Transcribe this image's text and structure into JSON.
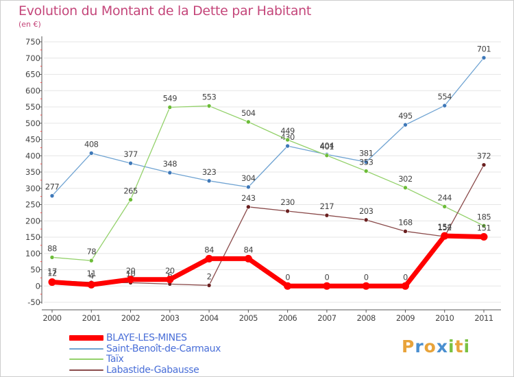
{
  "title": "Evolution du Montant de la Dette par Habitant",
  "subtitle": "(en €)",
  "brand": {
    "letters": [
      "P",
      "r",
      "o",
      "x",
      "i",
      "t",
      "i"
    ],
    "colors": [
      "#e8a33a",
      "#4a8fd0",
      "#e8a33a",
      "#4a8fd0",
      "#7ac142",
      "#e8a33a",
      "#7ac142"
    ]
  },
  "colors": {
    "axis": "#555555",
    "grid": "#e6e6e6",
    "text": "#444444"
  },
  "chart_data": {
    "type": "line",
    "title": "Evolution du Montant de la Dette par Habitant",
    "ylabel": "(en €)",
    "xlabel": "",
    "ylim": [
      -50,
      750
    ],
    "yticks": [
      "-50",
      "0",
      "50",
      "100",
      "150",
      "200",
      "250",
      "300",
      "350",
      "400",
      "450",
      "500",
      "550",
      "600",
      "650",
      "700",
      "750"
    ],
    "categories": [
      "2000",
      "2001",
      "2002",
      "2003",
      "2004",
      "2005",
      "2006",
      "2007",
      "2008",
      "2009",
      "2010",
      "2011"
    ],
    "grid": "horizontal",
    "legend_position": "bottom-left",
    "series": [
      {
        "name": "Saint-Benoît-de-Carmaux",
        "color": "#6fa3d2",
        "dot": "#3e78b8",
        "width": 1.3,
        "values": [
          277,
          408,
          377,
          348,
          323,
          304,
          430,
          404,
          381,
          495,
          554,
          701
        ],
        "labels": [
          "277",
          "408",
          "377",
          "348",
          "323",
          "304",
          "430",
          "404",
          "381",
          "495",
          "554",
          "701"
        ]
      },
      {
        "name": "Taïx",
        "color": "#93d16a",
        "dot": "#6cbc38",
        "width": 1.3,
        "values": [
          88,
          78,
          265,
          549,
          553,
          504,
          449,
          401,
          353,
          302,
          244,
          185
        ],
        "labels": [
          "88",
          "78",
          "265",
          "549",
          "553",
          "504",
          "449",
          "401",
          "353",
          "302",
          "244",
          "185"
        ]
      },
      {
        "name": "Labastide-Gabausse",
        "color": "#8a4a4a",
        "dot": "#6a2020",
        "width": 1.3,
        "values": [
          17,
          11,
          10,
          6,
          2,
          243,
          230,
          217,
          203,
          168,
          152,
          372
        ],
        "labels": [
          "17",
          "11",
          "10",
          "6",
          "2",
          "243",
          "230",
          "217",
          "203",
          "168",
          "152",
          "372"
        ]
      },
      {
        "name": "BLAYE-LES-MINES",
        "color": "#ff0000",
        "dot": "#ff0000",
        "width": 7,
        "values": [
          12,
          4,
          20,
          20,
          84,
          84,
          0,
          0,
          0,
          0,
          154,
          151
        ],
        "labels": [
          "12",
          "4",
          "20",
          "20",
          "84",
          "84",
          "0",
          "0",
          "0",
          "0",
          "154",
          "151"
        ]
      }
    ],
    "legend": [
      {
        "name": "BLAYE-LES-MINES",
        "color": "#ff0000",
        "thickness": 8
      },
      {
        "name": "Saint-Benoît-de-Carmaux",
        "color": "#6fa3d2",
        "thickness": 2
      },
      {
        "name": "Taïx",
        "color": "#93d16a",
        "thickness": 2
      },
      {
        "name": "Labastide-Gabausse",
        "color": "#8a4a4a",
        "thickness": 2
      }
    ]
  }
}
